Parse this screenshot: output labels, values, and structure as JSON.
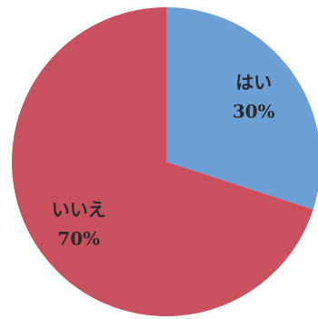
{
  "chart_data": {
    "type": "pie",
    "categories": [
      "はい",
      "いいえ"
    ],
    "values": [
      30,
      70
    ],
    "value_labels": [
      "30%",
      "70%"
    ],
    "colors": [
      "#6c9fd6",
      "#c9515f"
    ]
  }
}
